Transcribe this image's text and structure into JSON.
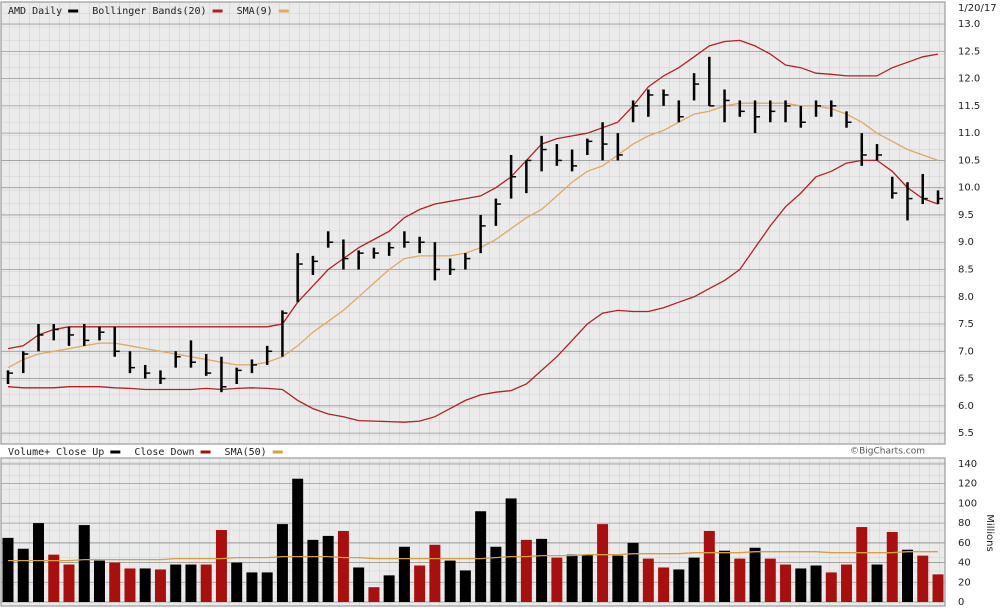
{
  "chart_data": [
    {
      "type": "ohlc",
      "title": "AMD Daily",
      "date": "1/20/17",
      "color": "#000000",
      "high": [
        6.65,
        7.0,
        7.5,
        7.5,
        7.45,
        7.5,
        7.45,
        7.45,
        7.0,
        6.75,
        6.65,
        7.0,
        7.2,
        6.95,
        6.9,
        6.7,
        6.85,
        7.1,
        7.75,
        8.8,
        8.75,
        9.2,
        9.05,
        8.85,
        8.9,
        9.0,
        9.2,
        9.1,
        9.0,
        8.7,
        8.8,
        9.5,
        9.8,
        10.6,
        10.5,
        10.95,
        10.8,
        10.7,
        10.9,
        11.2,
        11.0,
        11.6,
        11.8,
        11.8,
        11.6,
        12.1,
        12.4,
        11.8,
        11.6,
        11.6,
        11.6,
        11.6,
        11.5,
        11.6,
        11.6,
        11.4,
        11.0,
        10.8,
        10.2,
        10.1,
        10.25,
        9.95
      ],
      "low": [
        6.4,
        6.6,
        7.0,
        7.2,
        7.1,
        7.1,
        7.2,
        6.9,
        6.6,
        6.5,
        6.4,
        6.7,
        6.7,
        6.55,
        6.25,
        6.4,
        6.6,
        6.75,
        6.9,
        7.9,
        8.4,
        8.9,
        8.5,
        8.5,
        8.7,
        8.75,
        8.9,
        8.8,
        8.3,
        8.4,
        8.5,
        8.8,
        9.3,
        9.8,
        9.9,
        10.3,
        10.4,
        10.3,
        10.6,
        10.5,
        10.5,
        11.2,
        11.3,
        11.5,
        11.2,
        11.6,
        11.5,
        11.2,
        11.3,
        11.0,
        11.2,
        11.2,
        11.1,
        11.3,
        11.3,
        11.1,
        10.4,
        10.5,
        9.8,
        9.4,
        9.7,
        9.7
      ],
      "close": [
        6.6,
        6.95,
        7.3,
        7.4,
        7.3,
        7.2,
        7.35,
        7.0,
        6.7,
        6.6,
        6.5,
        6.9,
        6.8,
        6.6,
        6.35,
        6.65,
        6.75,
        7.0,
        7.7,
        8.6,
        8.65,
        9.0,
        8.7,
        8.8,
        8.8,
        8.9,
        9.0,
        9.0,
        8.5,
        8.5,
        8.7,
        9.3,
        9.7,
        10.2,
        10.5,
        10.7,
        10.5,
        10.4,
        10.85,
        10.8,
        10.6,
        11.5,
        11.7,
        11.7,
        11.3,
        11.9,
        11.5,
        11.6,
        11.4,
        11.3,
        11.4,
        11.5,
        11.2,
        11.5,
        11.5,
        11.2,
        10.6,
        10.6,
        9.9,
        9.8,
        9.8,
        9.8
      ],
      "series": [
        {
          "name": "Bollinger Bands(20)",
          "color": "#b22222",
          "upper": [
            7.05,
            7.1,
            7.3,
            7.4,
            7.45,
            7.45,
            7.45,
            7.45,
            7.45,
            7.45,
            7.45,
            7.45,
            7.45,
            7.45,
            7.45,
            7.45,
            7.45,
            7.45,
            7.5,
            7.9,
            8.2,
            8.5,
            8.7,
            8.9,
            9.05,
            9.2,
            9.45,
            9.6,
            9.7,
            9.75,
            9.8,
            9.85,
            10.0,
            10.2,
            10.5,
            10.8,
            10.9,
            10.95,
            11.0,
            11.1,
            11.2,
            11.5,
            11.85,
            12.05,
            12.2,
            12.4,
            12.6,
            12.68,
            12.7,
            12.6,
            12.45,
            12.25,
            12.2,
            12.1,
            12.08,
            12.05,
            12.05,
            12.05,
            12.2,
            12.3,
            12.4,
            12.45
          ],
          "lower": [
            6.35,
            6.33,
            6.33,
            6.33,
            6.35,
            6.35,
            6.35,
            6.33,
            6.32,
            6.3,
            6.3,
            6.3,
            6.3,
            6.32,
            6.3,
            6.32,
            6.33,
            6.32,
            6.3,
            6.1,
            5.95,
            5.85,
            5.8,
            5.73,
            5.72,
            5.71,
            5.7,
            5.72,
            5.8,
            5.95,
            6.1,
            6.2,
            6.25,
            6.28,
            6.4,
            6.65,
            6.9,
            7.2,
            7.5,
            7.7,
            7.75,
            7.73,
            7.73,
            7.8,
            7.9,
            8.0,
            8.15,
            8.3,
            8.5,
            8.9,
            9.3,
            9.65,
            9.9,
            10.2,
            10.3,
            10.45,
            10.5,
            10.5,
            10.3,
            10.0,
            9.8,
            9.7
          ]
        },
        {
          "name": "SMA(9)",
          "color": "#e0a860",
          "values": [
            6.7,
            6.85,
            6.95,
            7.0,
            7.05,
            7.1,
            7.15,
            7.15,
            7.1,
            7.05,
            7.0,
            6.95,
            6.9,
            6.85,
            6.8,
            6.75,
            6.75,
            6.8,
            6.9,
            7.1,
            7.35,
            7.55,
            7.75,
            8.0,
            8.25,
            8.5,
            8.7,
            8.75,
            8.75,
            8.75,
            8.8,
            8.9,
            9.05,
            9.25,
            9.45,
            9.6,
            9.85,
            10.1,
            10.3,
            10.4,
            10.6,
            10.8,
            10.95,
            11.05,
            11.2,
            11.35,
            11.4,
            11.5,
            11.55,
            11.55,
            11.55,
            11.55,
            11.5,
            11.5,
            11.45,
            11.35,
            11.2,
            11.0,
            10.85,
            10.7,
            10.6,
            10.5
          ]
        }
      ],
      "ylim": [
        5.3,
        13.35
      ],
      "yticks": [
        5.5,
        {
          "value": 6,
          "label": "6.0"
        },
        6.5,
        {
          "value": 7,
          "label": "7.0"
        },
        7.5,
        {
          "value": 8,
          "label": "8.0"
        },
        8.5,
        {
          "value": 9,
          "label": "9.0"
        },
        9.5,
        {
          "value": 10,
          "label": "10.0"
        },
        10.5,
        {
          "value": 11,
          "label": "11.0"
        },
        11.5,
        {
          "value": 12,
          "label": "12.0"
        },
        12.5,
        {
          "value": 13,
          "label": "13.0"
        }
      ],
      "grid": true
    },
    {
      "type": "bar",
      "title": "Volume+",
      "annotation": "©BigCharts.com",
      "ylabel": "Millions",
      "series": [
        {
          "name": "Close Up",
          "color": "#000000",
          "values": [
            65,
            54,
            80,
            null,
            null,
            78,
            42,
            null,
            null,
            34,
            null,
            38,
            38,
            null,
            null,
            40,
            30,
            30,
            79,
            125,
            63,
            67,
            null,
            35,
            null,
            27,
            56,
            null,
            null,
            42,
            32,
            92,
            56,
            105,
            null,
            64,
            null,
            48,
            48,
            null,
            47,
            60,
            null,
            null,
            33,
            45,
            null,
            52,
            null,
            55,
            null,
            null,
            34,
            37,
            null,
            null,
            null,
            38,
            null,
            53,
            null,
            null
          ]
        },
        {
          "name": "Close Down",
          "color": "#a81010",
          "values": [
            null,
            null,
            null,
            48,
            38,
            null,
            null,
            40,
            34,
            null,
            33,
            null,
            null,
            38,
            73,
            null,
            null,
            null,
            null,
            null,
            null,
            null,
            72,
            null,
            15,
            null,
            null,
            37,
            58,
            null,
            null,
            null,
            null,
            null,
            63,
            null,
            45,
            null,
            null,
            79,
            null,
            null,
            44,
            35,
            null,
            null,
            72,
            null,
            44,
            null,
            44,
            38,
            null,
            null,
            30,
            38,
            76,
            null,
            71,
            null,
            47,
            28
          ]
        },
        {
          "name": "SMA(50)",
          "color": "#d4a040",
          "line": true,
          "values": [
            42,
            42,
            42,
            42,
            42,
            43,
            43,
            43,
            43,
            43,
            43,
            44,
            44,
            44,
            44,
            45,
            45,
            45,
            46,
            46,
            46,
            46,
            45,
            45,
            44,
            44,
            44,
            44,
            44,
            44,
            44,
            44,
            45,
            46,
            46,
            47,
            47,
            47,
            48,
            48,
            48,
            49,
            49,
            49,
            49,
            50,
            50,
            50,
            50,
            51,
            51,
            51,
            51,
            51,
            50,
            50,
            50,
            50,
            50,
            51,
            51,
            51
          ]
        }
      ],
      "ylim": [
        0,
        146
      ],
      "yticks": [
        0,
        20,
        40,
        60,
        80,
        100,
        120,
        140
      ],
      "grid": true
    }
  ]
}
